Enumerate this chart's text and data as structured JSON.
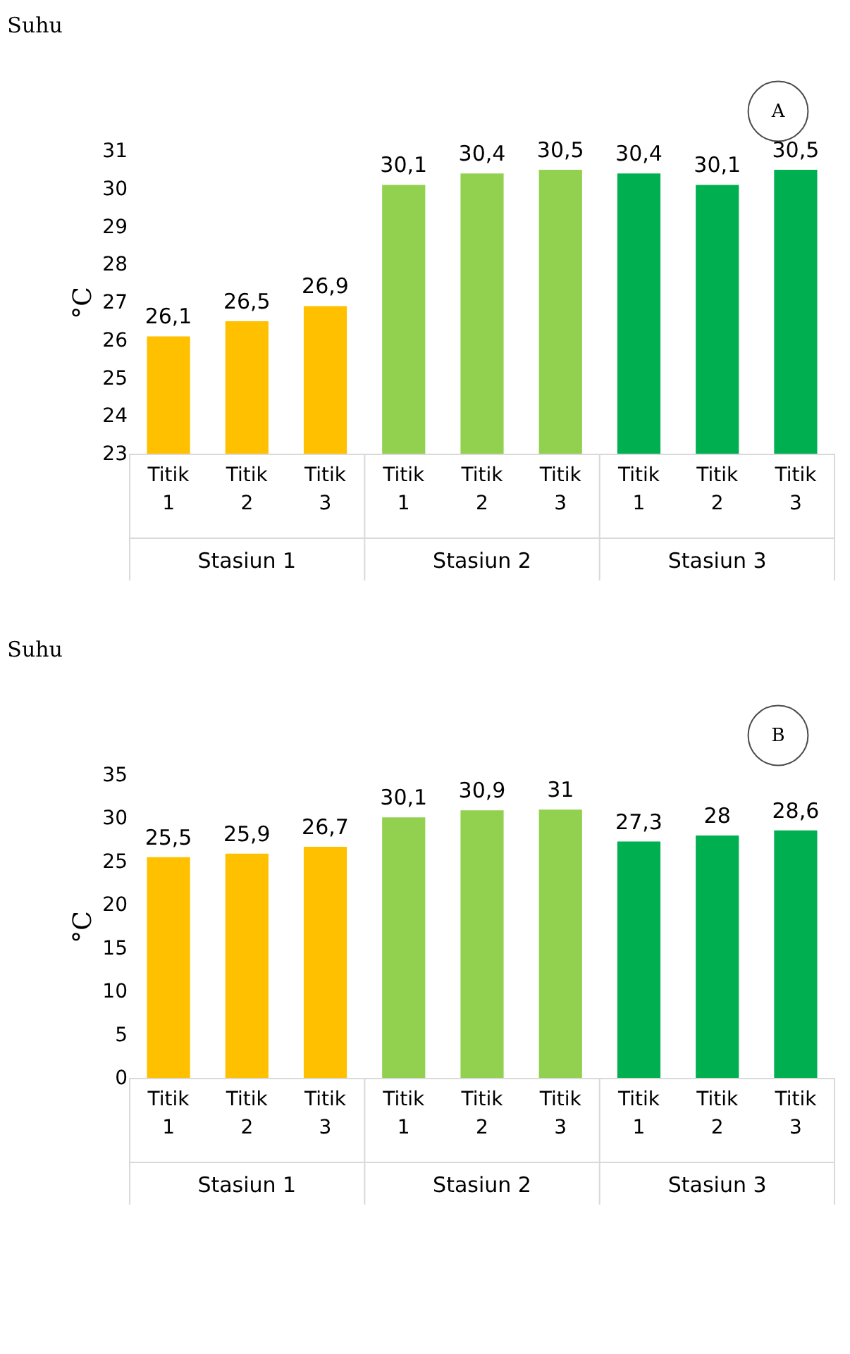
{
  "chart_data": [
    {
      "type": "bar",
      "title": "Suhu",
      "subtitle": "A",
      "ylabel": "°C",
      "categories": [
        "Titik 1",
        "Titik 2",
        "Titik 3",
        "Titik 1",
        "Titik 2",
        "Titik 3",
        "Titik 1",
        "Titik 2",
        "Titik 3"
      ],
      "values": [
        26.1,
        26.5,
        26.9,
        30.1,
        30.4,
        30.5,
        30.4,
        30.1,
        30.5
      ],
      "value_labels": [
        "26,1",
        "26,5",
        "26,9",
        "30,1",
        "30,4",
        "30,5",
        "30,4",
        "30,1",
        "30,5"
      ],
      "colors": [
        "#ffc000",
        "#ffc000",
        "#ffc000",
        "#92d050",
        "#92d050",
        "#92d050",
        "#00b050",
        "#00b050",
        "#00b050"
      ],
      "annotations": [
        "Stasiun 1",
        "Stasiun 2",
        "Stasiun 3"
      ],
      "ylim": [
        23,
        31
      ],
      "yticks": [
        23,
        24,
        25,
        26,
        27,
        28,
        29,
        30,
        31
      ],
      "grid": false
    },
    {
      "type": "bar",
      "title": "Suhu",
      "subtitle": "B",
      "ylabel": "°C",
      "categories": [
        "Titik 1",
        "Titik 2",
        "Titik 3",
        "Titik 1",
        "Titik 2",
        "Titik 3",
        "Titik 1",
        "Titik 2",
        "Titik 3"
      ],
      "values": [
        25.5,
        25.9,
        26.7,
        30.1,
        30.9,
        31,
        27.3,
        28,
        28.6
      ],
      "value_labels": [
        "25,5",
        "25,9",
        "26,7",
        "30,1",
        "30,9",
        "31",
        "27,3",
        "28",
        "28,6"
      ],
      "colors": [
        "#ffc000",
        "#ffc000",
        "#ffc000",
        "#92d050",
        "#92d050",
        "#92d050",
        "#00b050",
        "#00b050",
        "#00b050"
      ],
      "annotations": [
        "Stasiun 1",
        "Stasiun 2",
        "Stasiun 3"
      ],
      "ylim": [
        0,
        35
      ],
      "yticks": [
        0,
        5,
        10,
        15,
        20,
        25,
        30,
        35
      ],
      "grid": false
    }
  ]
}
